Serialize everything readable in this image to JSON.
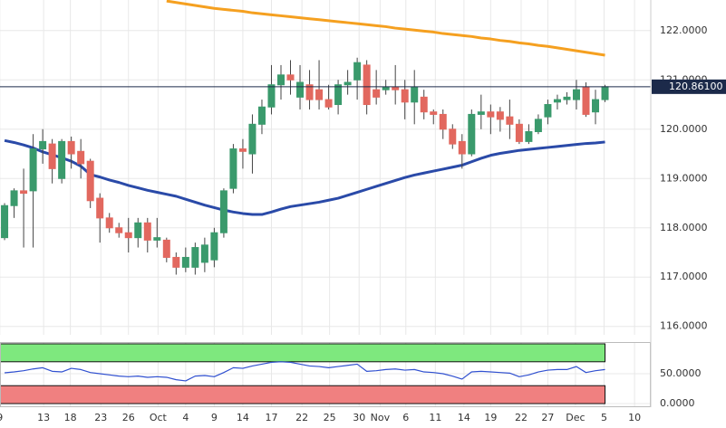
{
  "chart_data": [
    {
      "type": "candlestick",
      "x": [
        0,
        1,
        2,
        3,
        4,
        5,
        6,
        7,
        8,
        9,
        10,
        11,
        12,
        13,
        14,
        15,
        16,
        17,
        18,
        19,
        20,
        21,
        22,
        23,
        24,
        25,
        26,
        27,
        28,
        29,
        30,
        31,
        32,
        33,
        34,
        35,
        36,
        37,
        38,
        39,
        40,
        41,
        42,
        43,
        44,
        45,
        46,
        47,
        48,
        49,
        50,
        51,
        52,
        53,
        54,
        55,
        56,
        57,
        58,
        59,
        60,
        61,
        62,
        63
      ],
      "open": [
        117.8,
        118.45,
        118.75,
        118.75,
        119.6,
        119.7,
        119.0,
        119.75,
        119.55,
        119.35,
        118.6,
        118.2,
        118.0,
        117.9,
        117.8,
        118.1,
        117.75,
        117.75,
        117.4,
        117.2,
        117.2,
        117.3,
        117.35,
        117.9,
        118.8,
        119.6,
        119.5,
        120.1,
        120.45,
        120.9,
        121.1,
        120.65,
        120.9,
        120.8,
        120.6,
        120.5,
        120.9,
        121.0,
        121.3,
        120.8,
        120.8,
        120.85,
        120.8,
        120.55,
        120.65,
        120.35,
        120.3,
        120.0,
        119.75,
        119.5,
        120.3,
        120.35,
        120.35,
        120.25,
        120.1,
        119.75,
        119.95,
        120.25,
        120.55,
        120.6,
        120.6,
        120.85,
        120.35,
        120.6
      ],
      "high": [
        118.5,
        118.8,
        119.2,
        119.9,
        120.0,
        119.8,
        119.8,
        119.85,
        119.8,
        119.4,
        118.7,
        118.3,
        118.1,
        118.2,
        118.2,
        118.2,
        118.2,
        117.8,
        117.5,
        117.6,
        117.7,
        117.8,
        118.0,
        118.8,
        119.7,
        119.8,
        120.3,
        120.6,
        121.3,
        121.3,
        121.4,
        121.3,
        121.2,
        121.4,
        120.9,
        121.0,
        121.2,
        121.45,
        121.4,
        121.2,
        121.0,
        121.3,
        121.0,
        121.2,
        120.8,
        120.4,
        120.4,
        120.1,
        119.9,
        120.4,
        120.7,
        120.5,
        120.45,
        120.6,
        120.2,
        120.1,
        120.3,
        120.6,
        120.7,
        120.75,
        121.0,
        120.95,
        120.8,
        120.9
      ],
      "low": [
        117.75,
        118.2,
        117.6,
        117.6,
        119.3,
        118.9,
        118.9,
        119.2,
        119.0,
        118.4,
        117.7,
        117.9,
        117.8,
        117.5,
        117.6,
        117.5,
        117.6,
        117.3,
        117.05,
        117.1,
        117.05,
        117.1,
        117.2,
        117.8,
        118.7,
        119.2,
        119.1,
        119.9,
        120.3,
        120.6,
        120.7,
        120.4,
        120.4,
        120.4,
        120.4,
        120.3,
        120.7,
        120.6,
        120.3,
        120.5,
        120.7,
        120.5,
        120.2,
        120.1,
        120.2,
        120.1,
        119.8,
        119.6,
        119.2,
        119.45,
        120.0,
        119.9,
        119.95,
        119.8,
        119.7,
        119.7,
        119.9,
        120.1,
        120.4,
        120.5,
        120.4,
        120.25,
        120.1,
        120.55
      ],
      "close": [
        118.45,
        118.75,
        118.7,
        119.6,
        119.75,
        119.2,
        119.75,
        119.5,
        119.3,
        118.55,
        118.2,
        118.0,
        117.9,
        117.8,
        118.1,
        117.75,
        117.8,
        117.4,
        117.2,
        117.4,
        117.6,
        117.65,
        117.9,
        118.75,
        119.6,
        119.55,
        120.1,
        120.45,
        120.9,
        121.1,
        121.0,
        120.95,
        120.6,
        120.6,
        120.45,
        120.9,
        120.95,
        121.35,
        120.5,
        120.65,
        120.85,
        120.8,
        120.55,
        120.85,
        120.35,
        120.3,
        120.0,
        119.7,
        119.5,
        120.3,
        120.35,
        120.25,
        120.2,
        120.1,
        119.75,
        119.95,
        120.2,
        120.5,
        120.6,
        120.65,
        120.8,
        120.3,
        120.6,
        120.861
      ],
      "up_color": "#3a9a6c",
      "down_color": "#e2685f",
      "lines": [
        {
          "color": "#f5a020",
          "values": [
            null,
            null,
            null,
            null,
            null,
            null,
            null,
            null,
            null,
            null,
            null,
            null,
            null,
            null,
            null,
            null,
            null,
            122.6,
            122.57,
            122.54,
            122.51,
            122.48,
            122.45,
            122.43,
            122.41,
            122.39,
            122.36,
            122.34,
            122.32,
            122.3,
            122.28,
            122.26,
            122.24,
            122.22,
            122.2,
            122.18,
            122.16,
            122.14,
            122.12,
            122.1,
            122.08,
            122.05,
            122.03,
            122.01,
            121.99,
            121.97,
            121.94,
            121.92,
            121.9,
            121.88,
            121.85,
            121.83,
            121.8,
            121.78,
            121.75,
            121.73,
            121.7,
            121.68,
            121.65,
            121.62,
            121.59,
            121.56,
            121.53,
            121.5
          ]
        },
        {
          "color": "#2a4aa8",
          "values": [
            119.77,
            119.73,
            119.68,
            119.62,
            119.54,
            119.48,
            119.42,
            119.35,
            119.25,
            119.08,
            119.03,
            118.97,
            118.92,
            118.86,
            118.81,
            118.76,
            118.72,
            118.68,
            118.64,
            118.58,
            118.52,
            118.46,
            118.41,
            118.36,
            118.32,
            118.29,
            118.27,
            118.27,
            118.32,
            118.38,
            118.43,
            118.46,
            118.49,
            118.52,
            118.56,
            118.6,
            118.66,
            118.72,
            118.78,
            118.84,
            118.9,
            118.96,
            119.02,
            119.07,
            119.11,
            119.15,
            119.19,
            119.23,
            119.27,
            119.34,
            119.41,
            119.47,
            119.51,
            119.54,
            119.57,
            119.59,
            119.61,
            119.63,
            119.65,
            119.67,
            119.69,
            119.71,
            119.72,
            119.74
          ]
        }
      ],
      "last_price": {
        "value": 120.861,
        "label": "120.86100",
        "color": "#1c2a4a"
      },
      "ylim": [
        115.83,
        122.62
      ],
      "yticks": [
        {
          "value": 116,
          "label": "116.0000"
        },
        {
          "value": 117,
          "label": "117.0000"
        },
        {
          "value": 118,
          "label": "118.0000"
        },
        {
          "value": 119,
          "label": "119.0000"
        },
        {
          "value": 120,
          "label": "120.0000"
        },
        {
          "value": 121,
          "label": "121.0000"
        },
        {
          "value": 122,
          "label": "122.0000"
        }
      ],
      "xlim": [
        -0.48,
        67.8
      ],
      "xticks": [
        {
          "value": -0.5,
          "label": "9"
        },
        {
          "value": 4.1,
          "label": "13"
        },
        {
          "value": 6.9,
          "label": "18"
        },
        {
          "value": 10.1,
          "label": "23"
        },
        {
          "value": 13.0,
          "label": "26"
        },
        {
          "value": 16.1,
          "label": "Oct"
        },
        {
          "value": 19.0,
          "label": "4"
        },
        {
          "value": 22.0,
          "label": "9"
        },
        {
          "value": 25.0,
          "label": "14"
        },
        {
          "value": 28.0,
          "label": "17"
        },
        {
          "value": 31.2,
          "label": "22"
        },
        {
          "value": 34.1,
          "label": "25"
        },
        {
          "value": 37.2,
          "label": "30"
        },
        {
          "value": 39.4,
          "label": "Nov"
        },
        {
          "value": 42.1,
          "label": "6"
        },
        {
          "value": 45.2,
          "label": "11"
        },
        {
          "value": 48.2,
          "label": "14"
        },
        {
          "value": 51.0,
          "label": "19"
        },
        {
          "value": 54.2,
          "label": "22"
        },
        {
          "value": 57.0,
          "label": "27"
        },
        {
          "value": 59.9,
          "label": "Dec"
        },
        {
          "value": 62.9,
          "label": "5"
        },
        {
          "value": 66.1,
          "label": "10"
        }
      ],
      "grid": true
    },
    {
      "type": "line",
      "x": [
        0,
        1,
        2,
        3,
        4,
        5,
        6,
        7,
        8,
        9,
        10,
        11,
        12,
        13,
        14,
        15,
        16,
        17,
        18,
        19,
        20,
        21,
        22,
        23,
        24,
        25,
        26,
        27,
        28,
        29,
        30,
        31,
        32,
        33,
        34,
        35,
        36,
        37,
        38,
        39,
        40,
        41,
        42,
        43,
        44,
        45,
        46,
        47,
        48,
        49,
        50,
        51,
        52,
        53,
        54,
        55,
        56,
        57,
        58,
        59,
        60,
        61,
        62,
        63
      ],
      "values": [
        51.5,
        53,
        55,
        58,
        60,
        54,
        53,
        59,
        57,
        52,
        50,
        48,
        46,
        45,
        46,
        44,
        45,
        44,
        40,
        38,
        46,
        47,
        45,
        52,
        60,
        59,
        63,
        66,
        69,
        70,
        69,
        66,
        63,
        62,
        60,
        62,
        64,
        66,
        54,
        55,
        57,
        58,
        56,
        57,
        53,
        52,
        50,
        46,
        41,
        53,
        54,
        53,
        52,
        51,
        45,
        48,
        53,
        56,
        57,
        57,
        62,
        52,
        55,
        57
      ],
      "color": "#3050d0",
      "zones": [
        {
          "range": [
            70,
            100
          ],
          "color": "#7ee87e"
        },
        {
          "range": [
            0,
            30
          ],
          "color": "#f08080"
        }
      ],
      "ylim": [
        -6,
        103
      ],
      "yticks": [
        {
          "value": 50,
          "label": "50.0000"
        },
        {
          "value": 0,
          "label": "0.0000"
        }
      ],
      "grid": true
    }
  ]
}
